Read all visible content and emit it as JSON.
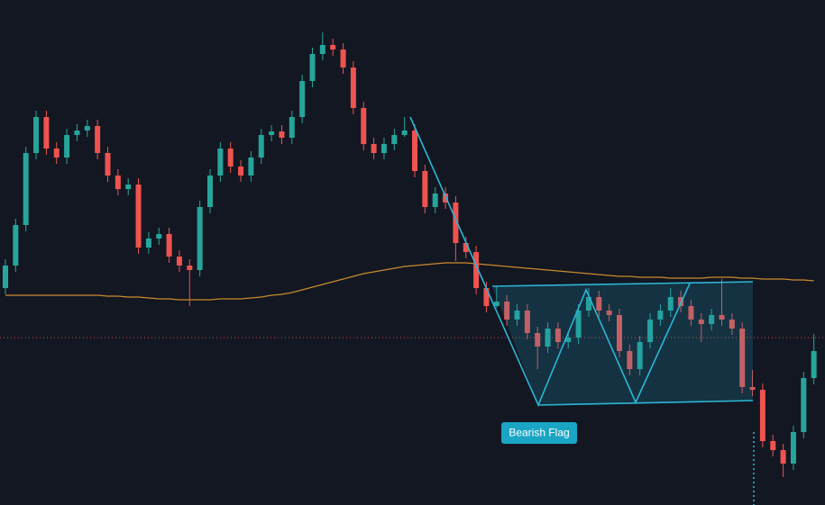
{
  "chart_data": {
    "type": "candlestick",
    "annotation": "Bearish Flag",
    "ylim": [
      0,
      561
    ],
    "up_color": "#26a69a",
    "down_color": "#ef5350",
    "ma_color": "#c98a2e",
    "open": [
      241,
      266,
      311,
      391,
      431,
      396,
      386,
      411,
      416,
      421,
      391,
      366,
      351,
      356,
      286,
      296,
      301,
      276,
      266,
      261,
      331,
      366,
      396,
      376,
      366,
      386,
      411,
      415,
      408,
      431,
      471,
      501,
      511,
      506,
      486,
      441,
      401,
      391,
      401,
      411,
      416,
      371,
      331,
      346,
      336,
      291,
      281,
      241,
      221,
      226,
      206,
      216,
      191,
      176,
      196,
      181,
      186,
      216,
      231,
      216,
      211,
      171,
      151,
      181,
      206,
      216,
      231,
      221,
      206,
      201,
      211,
      206,
      196,
      131,
      128,
      71,
      61,
      46,
      81,
      141
    ],
    "high": [
      273,
      318,
      398,
      438,
      438,
      403,
      418,
      423,
      428,
      428,
      398,
      373,
      363,
      363,
      303,
      308,
      308,
      283,
      273,
      338,
      373,
      403,
      403,
      383,
      393,
      418,
      422,
      422,
      438,
      478,
      508,
      525,
      518,
      513,
      493,
      448,
      408,
      408,
      418,
      431,
      423,
      378,
      353,
      353,
      343,
      298,
      288,
      248,
      243,
      233,
      223,
      223,
      198,
      203,
      203,
      193,
      223,
      241,
      238,
      223,
      218,
      178,
      188,
      213,
      223,
      241,
      238,
      228,
      213,
      218,
      251,
      213,
      203,
      150,
      135,
      78,
      68,
      88,
      148,
      190
    ],
    "low": [
      234,
      259,
      304,
      384,
      389,
      379,
      379,
      404,
      409,
      384,
      359,
      344,
      344,
      279,
      279,
      289,
      269,
      259,
      221,
      254,
      324,
      359,
      369,
      359,
      359,
      379,
      404,
      401,
      401,
      424,
      464,
      494,
      499,
      479,
      434,
      394,
      384,
      384,
      394,
      409,
      364,
      324,
      324,
      329,
      271,
      274,
      234,
      214,
      219,
      199,
      199,
      184,
      151,
      169,
      174,
      174,
      179,
      209,
      209,
      204,
      164,
      144,
      144,
      174,
      199,
      209,
      214,
      199,
      181,
      194,
      199,
      189,
      124,
      121,
      64,
      54,
      31,
      39,
      74,
      134
    ],
    "close": [
      266,
      311,
      391,
      431,
      396,
      386,
      411,
      416,
      421,
      391,
      366,
      351,
      356,
      286,
      296,
      301,
      276,
      266,
      261,
      331,
      366,
      396,
      376,
      366,
      386,
      411,
      415,
      408,
      431,
      471,
      501,
      511,
      506,
      486,
      441,
      401,
      391,
      401,
      411,
      416,
      371,
      331,
      346,
      336,
      291,
      281,
      241,
      221,
      226,
      206,
      216,
      191,
      176,
      196,
      181,
      186,
      216,
      231,
      216,
      211,
      171,
      151,
      181,
      206,
      216,
      231,
      221,
      206,
      201,
      211,
      206,
      196,
      131,
      128,
      71,
      61,
      46,
      81,
      141,
      171
    ],
    "ma": [
      233,
      233,
      233,
      233,
      233,
      233,
      233,
      233,
      233,
      233,
      232,
      232,
      231,
      231,
      230,
      229,
      229,
      228,
      228,
      228,
      228,
      229,
      229,
      229,
      230,
      231,
      233,
      234,
      236,
      239,
      242,
      245,
      248,
      251,
      254,
      257,
      259,
      261,
      263,
      265,
      266,
      267,
      268,
      269,
      269,
      269,
      268,
      267,
      266,
      265,
      264,
      263,
      262,
      261,
      260,
      259,
      258,
      257,
      256,
      255,
      254,
      254,
      253,
      253,
      253,
      252,
      252,
      252,
      252,
      253,
      253,
      253,
      252,
      252,
      251,
      251,
      251,
      250,
      250,
      249
    ]
  }
}
